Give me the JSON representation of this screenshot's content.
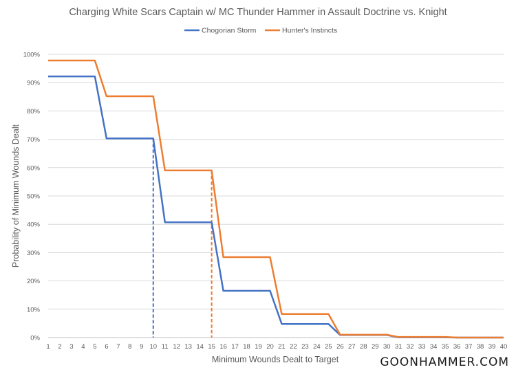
{
  "chart_data": {
    "type": "line",
    "title": "Charging White Scars Captain w/ MC Thunder Hammer in Assault Doctrine vs. Knight",
    "xlabel": "Minimum Wounds Dealt to Target",
    "ylabel": "Probability of Minimum Wounds Dealt",
    "x": [
      1,
      2,
      3,
      4,
      5,
      6,
      7,
      8,
      9,
      10,
      11,
      12,
      13,
      14,
      15,
      16,
      17,
      18,
      19,
      20,
      21,
      22,
      23,
      24,
      25,
      26,
      27,
      28,
      29,
      30,
      31,
      32,
      33,
      34,
      35,
      36,
      37,
      38,
      39,
      40
    ],
    "ylim": [
      0,
      1
    ],
    "yticks": [
      "0%",
      "10%",
      "20%",
      "30%",
      "40%",
      "50%",
      "60%",
      "70%",
      "80%",
      "90%",
      "100%"
    ],
    "grid": "horizontal",
    "legend_position": "top",
    "series": [
      {
        "name": "Chogorian Storm",
        "color": "#4472c4",
        "values": [
          0.922,
          0.922,
          0.922,
          0.922,
          0.922,
          0.703,
          0.703,
          0.703,
          0.703,
          0.703,
          0.407,
          0.407,
          0.407,
          0.407,
          0.407,
          0.165,
          0.165,
          0.165,
          0.165,
          0.165,
          0.048,
          0.048,
          0.048,
          0.048,
          0.048,
          0.009,
          0.009,
          0.009,
          0.009,
          0.009,
          0.001,
          0.001,
          0.001,
          0.001,
          0.001,
          0.0,
          0.0,
          0.0,
          0.0,
          0.0
        ],
        "marker_x": 10
      },
      {
        "name": "Hunter's Instincts",
        "color": "#ed7d31",
        "values": [
          0.978,
          0.978,
          0.978,
          0.978,
          0.978,
          0.852,
          0.852,
          0.852,
          0.852,
          0.852,
          0.59,
          0.59,
          0.59,
          0.59,
          0.59,
          0.284,
          0.284,
          0.284,
          0.284,
          0.284,
          0.083,
          0.083,
          0.083,
          0.083,
          0.083,
          0.01,
          0.01,
          0.01,
          0.01,
          0.01,
          0.002,
          0.002,
          0.002,
          0.002,
          0.002,
          0.0,
          0.0,
          0.0,
          0.0,
          0.0
        ],
        "marker_x": 15
      }
    ]
  },
  "watermark": "GOONHAMMER.COM"
}
